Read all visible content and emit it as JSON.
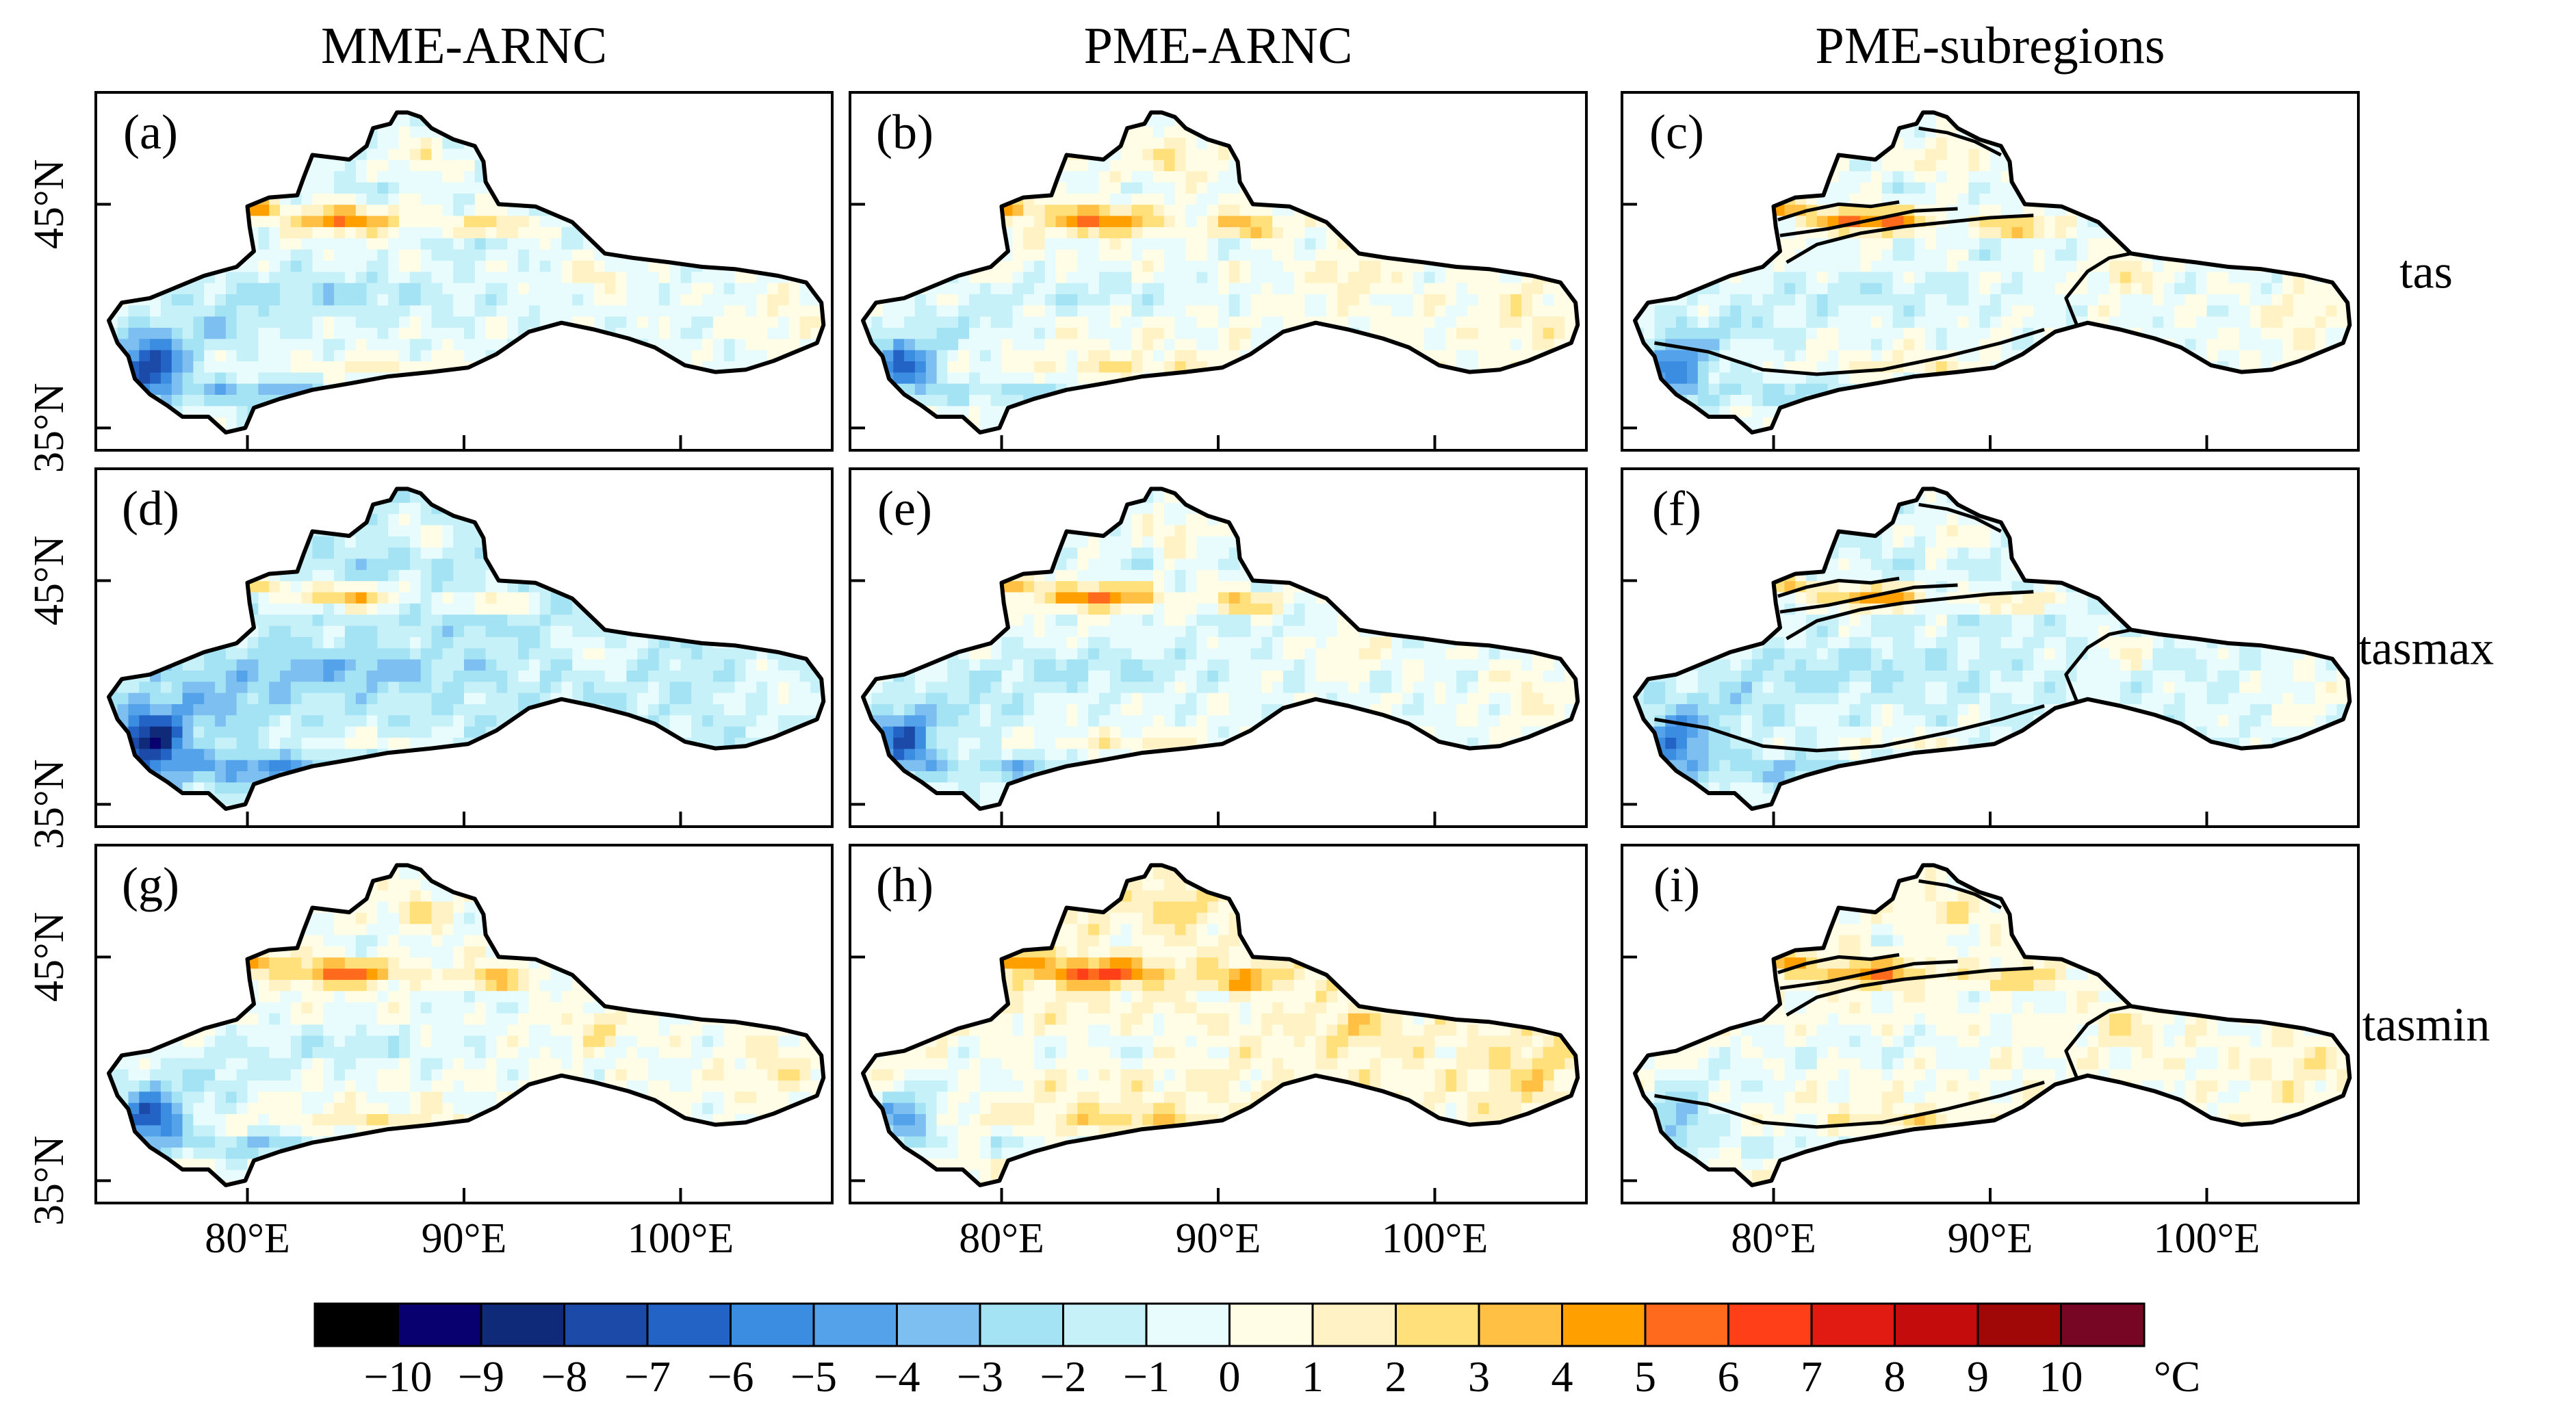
{
  "chart_data": {
    "type": "heatmap",
    "columns": [
      "MME-ARNC",
      "PME-ARNC",
      "PME-subregions"
    ],
    "rows": [
      "tas",
      "tasmax",
      "tasmin"
    ],
    "panels": [
      {
        "label": "(a)",
        "column": "MME-ARNC",
        "row": "tas",
        "scheme": "full",
        "warm": 0.85,
        "cold": 1.0,
        "bias": -0.5
      },
      {
        "label": "(b)",
        "column": "PME-ARNC",
        "row": "tas",
        "scheme": "full",
        "warm": 0.8,
        "cold": 0.85,
        "bias": 0.2
      },
      {
        "label": "(c)",
        "column": "PME-subregions",
        "row": "tas",
        "scheme": "sub",
        "warm": 0.95,
        "cold": 0.7,
        "bias": -0.3
      },
      {
        "label": "(d)",
        "column": "MME-ARNC",
        "row": "tasmax",
        "scheme": "full",
        "warm": 0.8,
        "cold": 1.0,
        "bias": -1.6
      },
      {
        "label": "(e)",
        "column": "PME-ARNC",
        "row": "tasmax",
        "scheme": "full",
        "warm": 0.9,
        "cold": 0.85,
        "bias": -0.4
      },
      {
        "label": "(f)",
        "column": "PME-subregions",
        "row": "tasmax",
        "scheme": "sub",
        "warm": 0.8,
        "cold": 0.7,
        "bias": -0.9
      },
      {
        "label": "(g)",
        "column": "MME-ARNC",
        "row": "tasmin",
        "scheme": "full",
        "warm": 0.85,
        "cold": 0.95,
        "bias": 0.1
      },
      {
        "label": "(h)",
        "column": "PME-ARNC",
        "row": "tasmin",
        "scheme": "full",
        "warm": 0.85,
        "cold": 0.7,
        "bias": 1.0
      },
      {
        "label": "(i)",
        "column": "PME-subregions",
        "row": "tasmin",
        "scheme": "sub",
        "warm": 0.7,
        "cold": 0.55,
        "bias": 0.4
      }
    ],
    "x_ticks": [
      "80°E",
      "90°E",
      "100°E"
    ],
    "y_ticks": [
      "45°N",
      "35°N"
    ],
    "colorbar": {
      "ticks": [
        "−10",
        "−9",
        "−8",
        "−7",
        "−6",
        "−5",
        "−4",
        "−3",
        "−2",
        "−1",
        "0",
        "1",
        "2",
        "3",
        "4",
        "5",
        "6",
        "7",
        "8",
        "9",
        "10"
      ],
      "unit": "°C",
      "colors": [
        "#000000",
        "#07006e",
        "#0e2a78",
        "#1b4aa8",
        "#2463c6",
        "#3a8de0",
        "#54a2ea",
        "#7dbff0",
        "#a4e3f4",
        "#c7f1f9",
        "#e8fbfd",
        "#fffde6",
        "#fff2c5",
        "#ffe07b",
        "#ffc044",
        "#ff9f00",
        "#ff6a1d",
        "#ff3f17",
        "#e21b12",
        "#c40c0c",
        "#a00808",
        "#770625"
      ]
    },
    "xlim": [
      73,
      107
    ],
    "ylim": [
      34,
      50
    ]
  }
}
